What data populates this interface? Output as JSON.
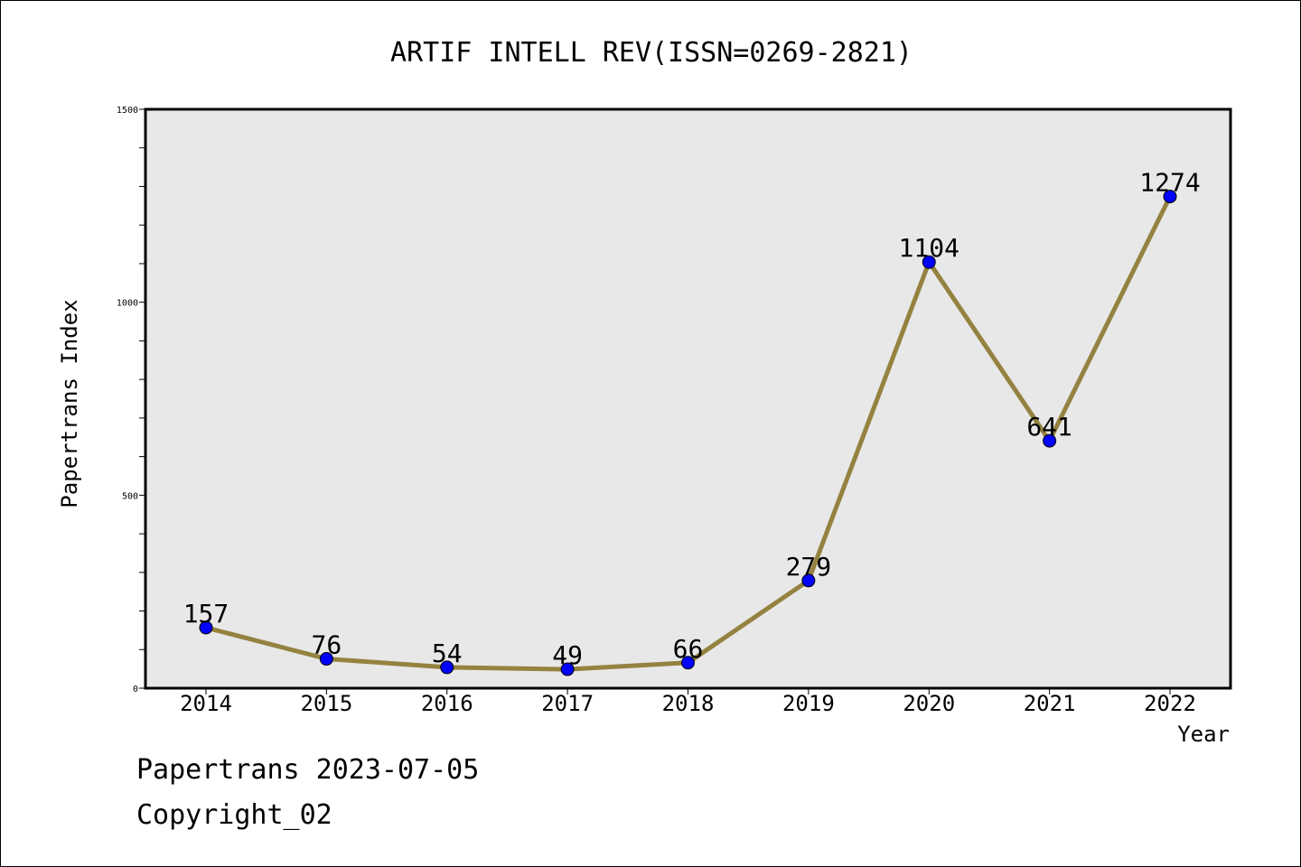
{
  "chart_data": {
    "type": "line",
    "title": "ARTIF INTELL REV(ISSN=0269-2821)",
    "xlabel": "Year",
    "ylabel": "Papertrans Index",
    "categories": [
      "2014",
      "2015",
      "2016",
      "2017",
      "2018",
      "2019",
      "2020",
      "2021",
      "2022"
    ],
    "series": [
      {
        "values": [
          157,
          76,
          54,
          49,
          66,
          279,
          1104,
          641,
          1274
        ]
      }
    ],
    "ylim": [
      0,
      1500
    ],
    "y_ticks": [
      "0",
      "500",
      "1000",
      "1500"
    ],
    "grid": false,
    "legend": "none",
    "colors": {
      "line": "#948240",
      "marker": "#0000ff",
      "plot_background": "#e8e8e8"
    }
  },
  "footer": {
    "line1": "Papertrans 2023-07-05",
    "line2": "Copyright_02"
  }
}
